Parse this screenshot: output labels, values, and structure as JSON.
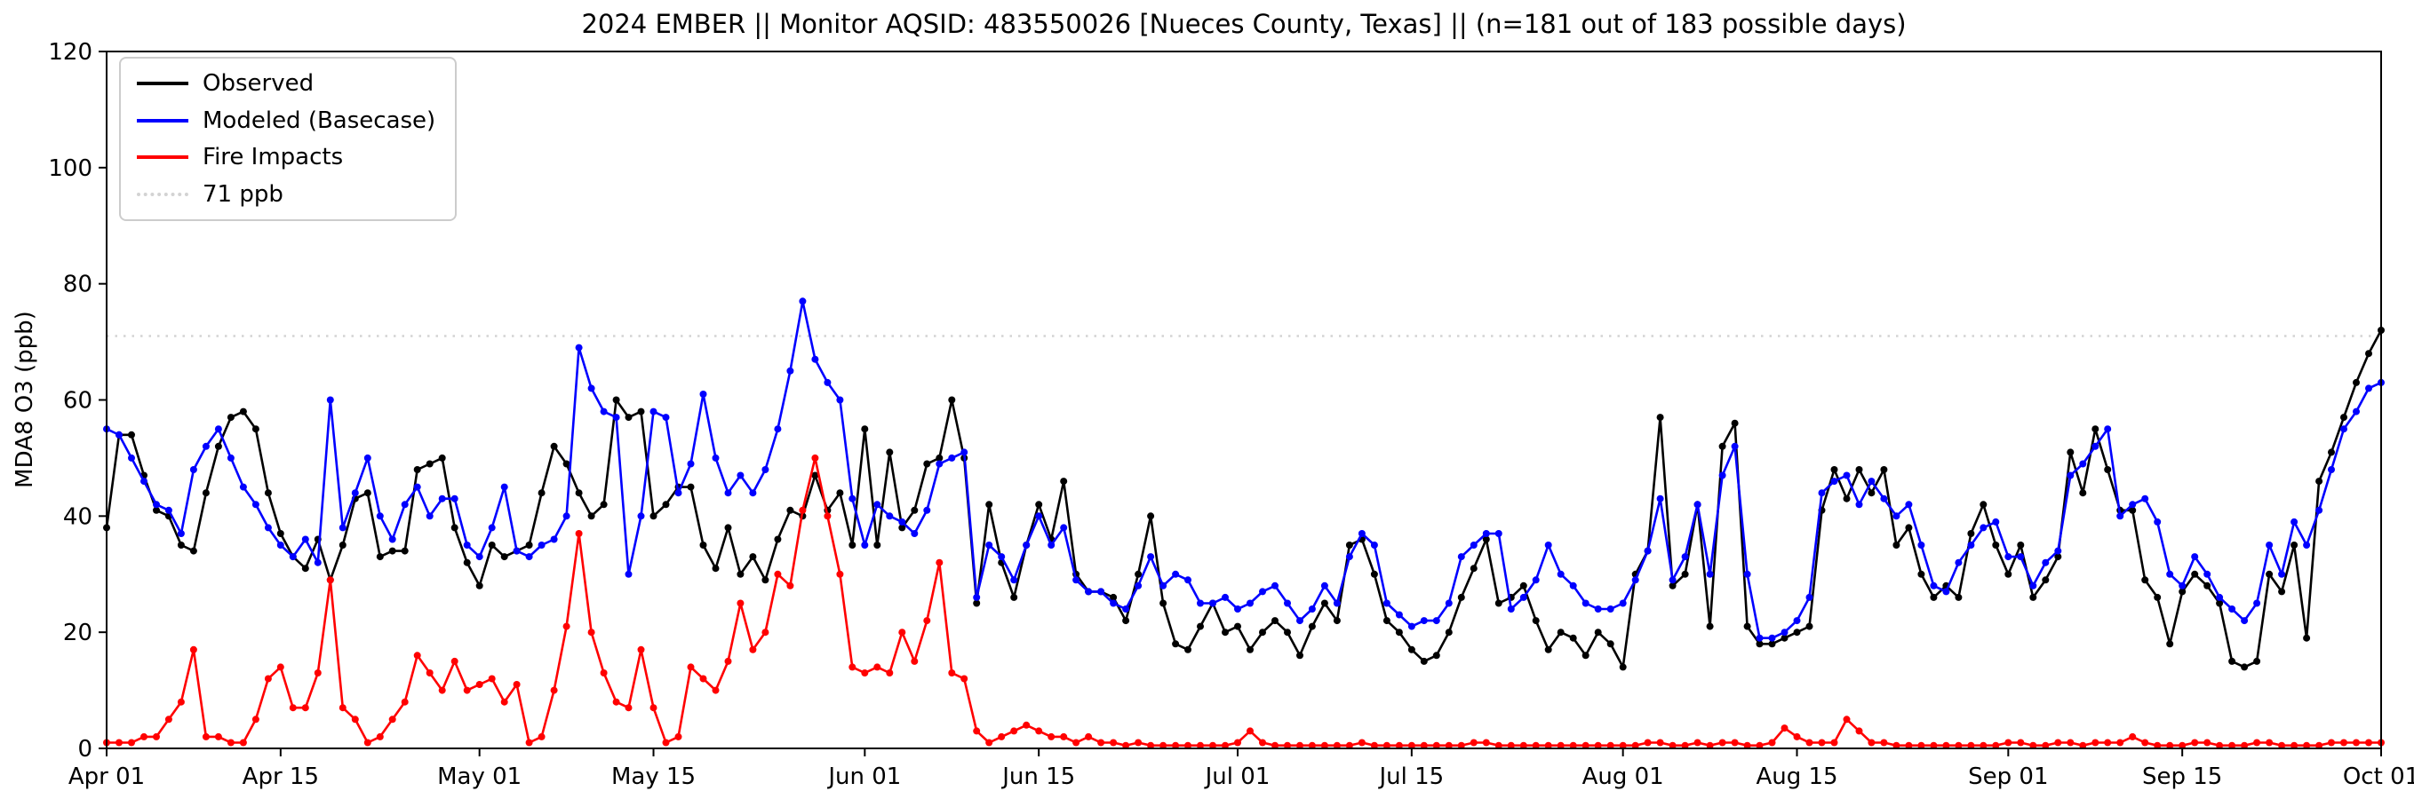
{
  "chart_data": {
    "type": "line",
    "title": "2024 EMBER || Monitor AQSID: 483550026 [Nueces County, Texas] || (n=181 out of 183 possible days)",
    "xlabel": "",
    "ylabel": "MDA8 O3 (ppb)",
    "ylim": [
      0,
      120
    ],
    "yticks": [
      0,
      20,
      40,
      60,
      80,
      100,
      120
    ],
    "x_range_days": [
      0,
      183
    ],
    "x_start": "Apr 01",
    "x_end": "Oct 01",
    "grid": false,
    "legend_position": "upper left",
    "marker": "circle",
    "xticks": [
      {
        "day": 0,
        "label": "Apr 01"
      },
      {
        "day": 14,
        "label": "Apr 15"
      },
      {
        "day": 30,
        "label": "May 01"
      },
      {
        "day": 44,
        "label": "May 15"
      },
      {
        "day": 61,
        "label": "Jun 01"
      },
      {
        "day": 75,
        "label": "Jun 15"
      },
      {
        "day": 91,
        "label": "Jul 01"
      },
      {
        "day": 105,
        "label": "Jul 15"
      },
      {
        "day": 122,
        "label": "Aug 01"
      },
      {
        "day": 136,
        "label": "Aug 15"
      },
      {
        "day": 153,
        "label": "Sep 01"
      },
      {
        "day": 167,
        "label": "Sep 15"
      },
      {
        "day": 183,
        "label": "Oct 01"
      }
    ],
    "threshold": {
      "value": 71,
      "label": "71 ppb",
      "color": "#d3d3d3",
      "style": "dotted"
    },
    "series": [
      {
        "name": "Observed",
        "color": "#000000",
        "values": [
          38,
          54,
          54,
          47,
          41,
          40,
          35,
          34,
          44,
          52,
          57,
          58,
          55,
          44,
          37,
          33,
          31,
          36,
          29,
          35,
          43,
          44,
          33,
          34,
          34,
          48,
          49,
          50,
          38,
          32,
          28,
          35,
          33,
          34,
          35,
          44,
          52,
          49,
          44,
          40,
          42,
          60,
          57,
          58,
          40,
          42,
          45,
          45,
          35,
          31,
          38,
          30,
          33,
          29,
          36,
          41,
          40,
          47,
          41,
          44,
          35,
          55,
          35,
          51,
          38,
          41,
          49,
          50,
          60,
          50,
          25,
          42,
          32,
          26,
          35,
          42,
          36,
          46,
          30,
          27,
          27,
          26,
          22,
          30,
          40,
          25,
          18,
          17,
          21,
          25,
          20,
          21,
          17,
          20,
          22,
          20,
          16,
          21,
          25,
          22,
          35,
          36,
          30,
          22,
          20,
          17,
          15,
          16,
          20,
          26,
          31,
          36,
          25,
          26,
          28,
          22,
          17,
          20,
          19,
          16,
          20,
          18,
          14,
          30,
          34,
          57,
          28,
          30,
          42,
          21,
          52,
          56,
          21,
          18,
          18,
          19,
          20,
          21,
          41,
          48,
          43,
          48,
          44,
          48,
          35,
          38,
          30,
          26,
          28,
          26,
          37,
          42,
          35,
          30,
          35,
          26,
          29,
          33,
          51,
          44,
          55,
          48,
          41,
          41,
          29,
          26,
          18,
          27,
          30,
          28,
          25,
          15,
          14,
          15,
          30,
          27,
          35,
          19,
          46,
          51,
          57,
          63,
          68,
          72
        ]
      },
      {
        "name": "Modeled (Basecase)",
        "color": "#0000ff",
        "values": [
          55,
          54,
          50,
          46,
          42,
          41,
          37,
          48,
          52,
          55,
          50,
          45,
          42,
          38,
          35,
          33,
          36,
          32,
          60,
          38,
          44,
          50,
          40,
          36,
          42,
          45,
          40,
          43,
          43,
          35,
          33,
          38,
          45,
          34,
          33,
          35,
          36,
          40,
          69,
          62,
          58,
          57,
          30,
          40,
          58,
          57,
          44,
          49,
          61,
          50,
          44,
          47,
          44,
          48,
          55,
          65,
          77,
          67,
          63,
          60,
          43,
          35,
          42,
          40,
          39,
          37,
          41,
          49,
          50,
          51,
          26,
          35,
          33,
          29,
          35,
          40,
          35,
          38,
          29,
          27,
          27,
          25,
          24,
          28,
          33,
          28,
          30,
          29,
          25,
          25,
          26,
          24,
          25,
          27,
          28,
          25,
          22,
          24,
          28,
          25,
          33,
          37,
          35,
          25,
          23,
          21,
          22,
          22,
          25,
          33,
          35,
          37,
          37,
          24,
          26,
          29,
          35,
          30,
          28,
          25,
          24,
          24,
          25,
          29,
          34,
          43,
          29,
          33,
          42,
          30,
          47,
          52,
          30,
          19,
          19,
          20,
          22,
          26,
          44,
          46,
          47,
          42,
          46,
          43,
          40,
          42,
          35,
          28,
          27,
          32,
          35,
          38,
          39,
          33,
          33,
          28,
          32,
          34,
          47,
          49,
          52,
          55,
          40,
          42,
          43,
          39,
          30,
          28,
          33,
          30,
          26,
          24,
          22,
          25,
          35,
          30,
          39,
          35,
          41,
          48,
          55,
          58,
          62,
          63
        ]
      },
      {
        "name": "Fire Impacts",
        "color": "#ff0000",
        "values": [
          1,
          1,
          1,
          2,
          2,
          5,
          8,
          17,
          2,
          2,
          1,
          1,
          5,
          12,
          14,
          7,
          7,
          13,
          29,
          7,
          5,
          1,
          2,
          5,
          8,
          16,
          13,
          10,
          15,
          10,
          11,
          12,
          8,
          11,
          1,
          2,
          10,
          21,
          37,
          20,
          13,
          8,
          7,
          17,
          7,
          1,
          2,
          14,
          12,
          10,
          15,
          25,
          17,
          20,
          30,
          28,
          41,
          50,
          40,
          30,
          14,
          13,
          14,
          13,
          20,
          15,
          22,
          32,
          13,
          12,
          3,
          1,
          2,
          3,
          4,
          3,
          2,
          2,
          1,
          2,
          1,
          1,
          0.5,
          1,
          0.5,
          0.5,
          0.5,
          0.5,
          0.5,
          0.5,
          0.5,
          1,
          3,
          1,
          0.5,
          0.5,
          0.5,
          0.5,
          0.5,
          0.5,
          0.5,
          1,
          0.5,
          0.5,
          0.5,
          0.5,
          0.5,
          0.5,
          0.5,
          0.5,
          1,
          1,
          0.5,
          0.5,
          0.5,
          0.5,
          0.5,
          0.5,
          0.5,
          0.5,
          0.5,
          0.5,
          0.5,
          0.5,
          1,
          1,
          0.5,
          0.5,
          1,
          0.5,
          1,
          1,
          0.5,
          0.5,
          1,
          3.5,
          2,
          1,
          1,
          1,
          5,
          3,
          1,
          1,
          0.5,
          0.5,
          0.5,
          0.5,
          0.5,
          0.5,
          0.5,
          0.5,
          0.5,
          1,
          1,
          0.5,
          0.5,
          1,
          1,
          0.5,
          1,
          1,
          1,
          2,
          1,
          0.5,
          0.5,
          0.5,
          1,
          1,
          0.5,
          0.5,
          0.5,
          1,
          1,
          0.5,
          0.5,
          0.5,
          0.5,
          1,
          1,
          1,
          1,
          1
        ]
      }
    ]
  }
}
